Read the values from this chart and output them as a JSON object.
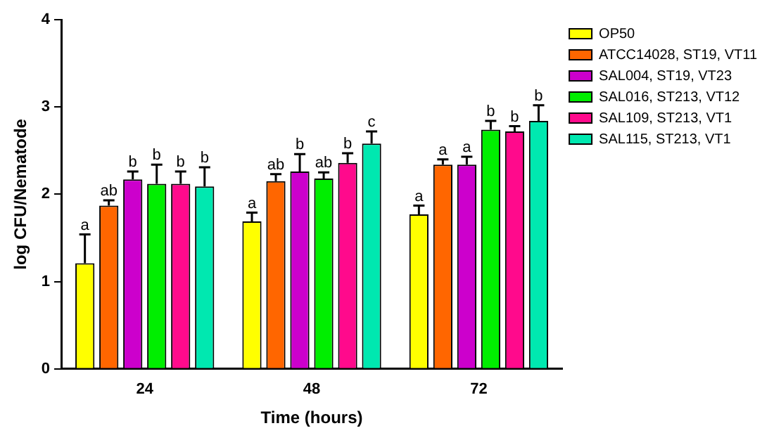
{
  "chart_data": {
    "type": "bar",
    "xlabel": "Time (hours)",
    "ylabel": "log CFU/Nematode",
    "categories": [
      "24",
      "48",
      "72"
    ],
    "ylim": [
      0,
      4
    ],
    "yticks": [
      0,
      1,
      2,
      3,
      4
    ],
    "grid": false,
    "legend": "right",
    "series": [
      {
        "name": "OP50",
        "color": "#ffff00",
        "values": [
          1.21,
          1.69,
          1.77
        ],
        "errors": [
          [
            1.21,
            1.54
          ],
          [
            1.69,
            1.79
          ],
          [
            1.77,
            1.87
          ]
        ],
        "value_labels": [
          "a",
          "a",
          "a"
        ]
      },
      {
        "name": "ATCC14028, ST19, VT11",
        "color": "#ff6600",
        "values": [
          1.87,
          2.15,
          2.34
        ],
        "errors": [
          [
            1.87,
            1.93
          ],
          [
            2.15,
            2.23
          ],
          [
            2.34,
            2.4
          ]
        ],
        "value_labels": [
          "ab",
          "ab",
          "a"
        ]
      },
      {
        "name": "SAL004, ST19, VT23",
        "color": "#cc00cc",
        "values": [
          2.17,
          2.26,
          2.34
        ],
        "errors": [
          [
            2.17,
            2.26
          ],
          [
            2.26,
            2.46
          ],
          [
            2.34,
            2.43
          ]
        ],
        "value_labels": [
          "b",
          "b",
          "a"
        ]
      },
      {
        "name": "SAL016, ST213, VT12",
        "color": "#00ee00",
        "values": [
          2.12,
          2.18,
          2.74
        ],
        "errors": [
          [
            2.12,
            2.34
          ],
          [
            2.18,
            2.25
          ],
          [
            2.74,
            2.84
          ]
        ],
        "value_labels": [
          "b",
          "ab",
          "b"
        ]
      },
      {
        "name": "SAL109, ST213, VT1",
        "color": "#ff0a8c",
        "values": [
          2.12,
          2.36,
          2.72
        ],
        "errors": [
          [
            2.12,
            2.26
          ],
          [
            2.36,
            2.47
          ],
          [
            2.72,
            2.78
          ]
        ],
        "value_labels": [
          "b",
          "b",
          "b"
        ]
      },
      {
        "name": "SAL115, ST213, VT1",
        "color": "#00e8b0",
        "values": [
          2.09,
          2.58,
          2.84
        ],
        "errors": [
          [
            2.09,
            2.31
          ],
          [
            2.58,
            2.72
          ],
          [
            2.84,
            3.02
          ]
        ],
        "value_labels": [
          "b",
          "c",
          "b"
        ]
      }
    ]
  }
}
